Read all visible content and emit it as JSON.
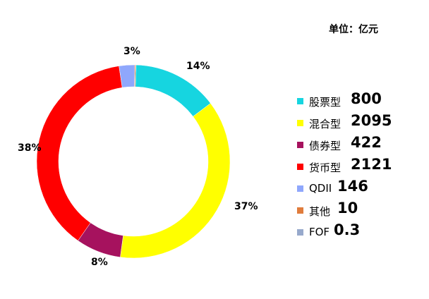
{
  "unit_label": "单位：亿元",
  "chart_data": {
    "type": "pie",
    "style": "donut",
    "title": "",
    "legend": "right",
    "slices": [
      {
        "name": "股票型",
        "value": 800,
        "label": "14%",
        "color": "#16D5E0"
      },
      {
        "name": "混合型",
        "value": 2095,
        "label": "37%",
        "color": "#FFFF00"
      },
      {
        "name": "债券型",
        "value": 422,
        "label": "8%",
        "color": "#A6125E"
      },
      {
        "name": "货币型",
        "value": 2121,
        "label": "38%",
        "color": "#FF0000"
      },
      {
        "name": "QDII",
        "value": 146,
        "label": "3%",
        "color": "#8FA7FC"
      },
      {
        "name": "其他",
        "value": 10,
        "label": "",
        "color": "#E07C3C"
      },
      {
        "name": "FOF",
        "value": 0.3,
        "label": "",
        "color": "#97A9CC"
      }
    ]
  }
}
